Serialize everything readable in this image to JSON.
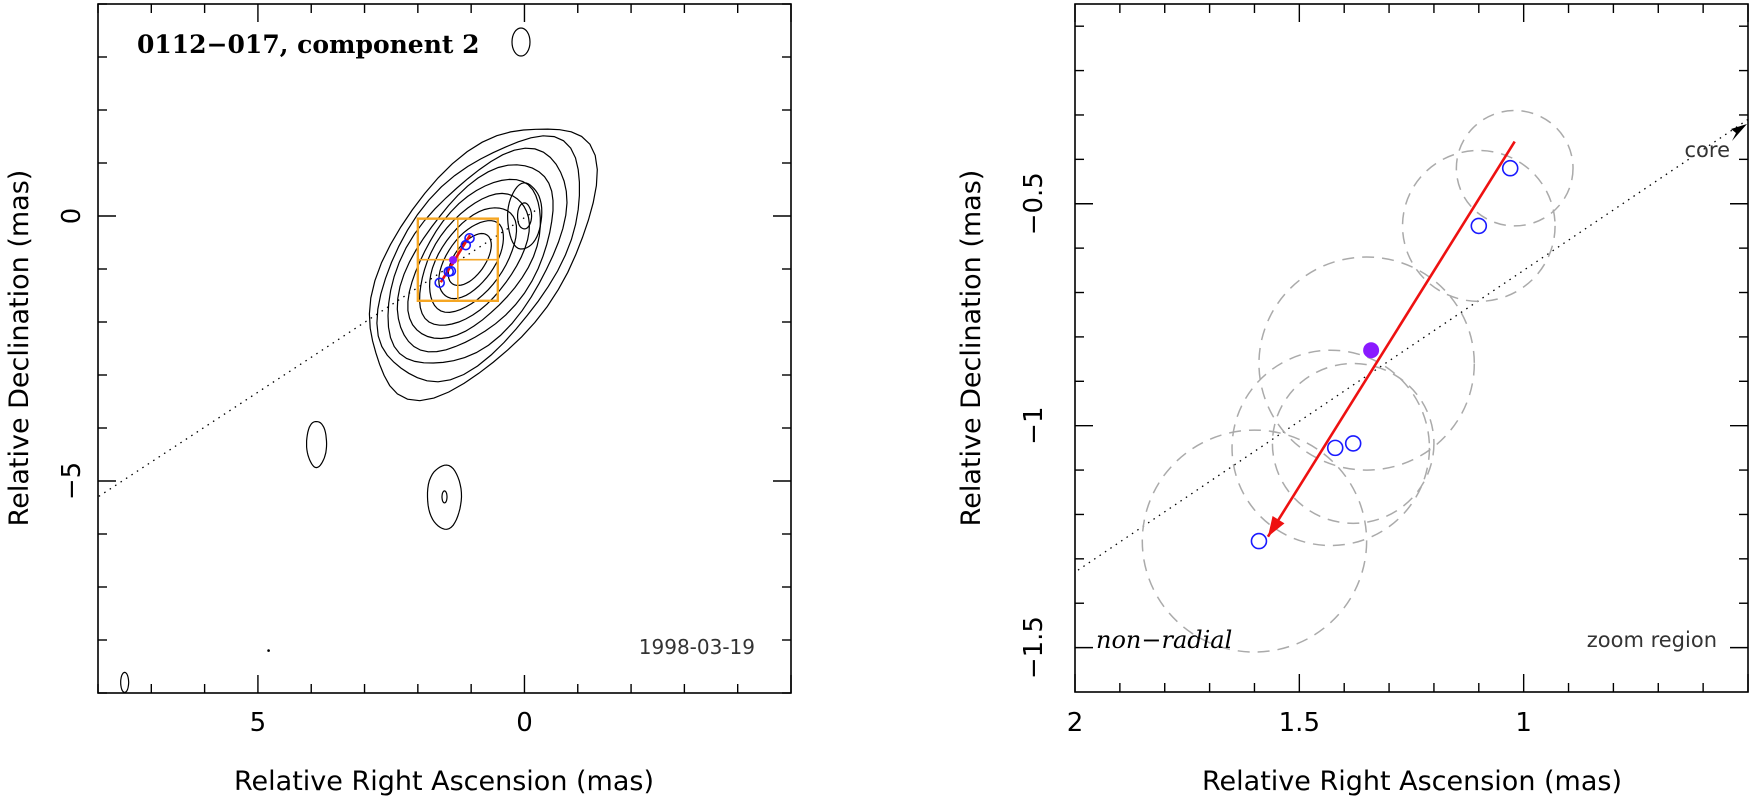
{
  "chart_data": [
    {
      "type": "scatter",
      "panel": "left",
      "title": "0112−017, component 2",
      "xlabel": "Relative Right Ascension (mas)",
      "ylabel": "Relative Declination (mas)",
      "xlim": [
        8,
        -5
      ],
      "ylim": [
        -9,
        4
      ],
      "xticks": [
        {
          "value": 5,
          "label": "5"
        },
        {
          "value": 0,
          "label": "0"
        }
      ],
      "yticks": [
        {
          "value": 0,
          "label": "0"
        },
        {
          "value": -5,
          "label": "−5"
        }
      ],
      "date": "1998-03-19",
      "contour_peaks": [
        {
          "x": 0.0,
          "y": 0.0,
          "levels": 2
        },
        {
          "x": 1.2,
          "y": -0.9,
          "levels": 9
        },
        {
          "x": 3.9,
          "y": -4.3,
          "levels": 1
        },
        {
          "x": 1.5,
          "y": -5.3,
          "levels": 2
        }
      ],
      "zoom_region": {
        "x_range": [
          0.5,
          2.0
        ],
        "y_range": [
          -1.6,
          -0.05
        ]
      },
      "core_direction_line": {
        "from": [
          -0.2,
          0.1
        ],
        "to": [
          8.0,
          -5.3
        ]
      },
      "positions_open": [
        [
          1.03,
          -0.42
        ],
        [
          1.1,
          -0.55
        ],
        [
          1.38,
          -1.04
        ],
        [
          1.42,
          -1.05
        ],
        [
          1.59,
          -1.26
        ]
      ],
      "position_filled": [
        1.34,
        -0.83
      ],
      "velocity_vector": {
        "from": [
          1.02,
          -0.36
        ],
        "to": [
          1.57,
          -1.25
        ]
      }
    },
    {
      "type": "scatter",
      "panel": "right",
      "xlabel": "Relative Right Ascension (mas)",
      "ylabel": "Relative Declination (mas)",
      "xlim": [
        2.0,
        0.5
      ],
      "ylim": [
        -1.6,
        -0.05
      ],
      "xticks": [
        {
          "value": 2,
          "label": "2"
        },
        {
          "value": 1.5,
          "label": "1.5"
        },
        {
          "value": 1,
          "label": "1"
        }
      ],
      "yticks": [
        {
          "value": -0.5,
          "label": "−0.5"
        },
        {
          "value": -1,
          "label": "−1"
        },
        {
          "value": -1.5,
          "label": "−1.5"
        }
      ],
      "positions_open": [
        [
          1.03,
          -0.42
        ],
        [
          1.1,
          -0.55
        ],
        [
          1.38,
          -1.04
        ],
        [
          1.42,
          -1.05
        ],
        [
          1.59,
          -1.26
        ]
      ],
      "position_filled": [
        1.34,
        -0.83
      ],
      "error_circles": [
        {
          "x": 1.02,
          "y": -0.42,
          "r": 0.13
        },
        {
          "x": 1.1,
          "y": -0.55,
          "r": 0.17
        },
        {
          "x": 1.35,
          "y": -0.86,
          "r": 0.24
        },
        {
          "x": 1.38,
          "y": -1.04,
          "r": 0.18
        },
        {
          "x": 1.43,
          "y": -1.05,
          "r": 0.22
        },
        {
          "x": 1.6,
          "y": -1.26,
          "r": 0.25
        }
      ],
      "velocity_vector": {
        "from": [
          1.02,
          -0.36
        ],
        "to": [
          1.57,
          -1.25
        ]
      },
      "core_direction_line": {
        "from": [
          0.5,
          -0.31
        ],
        "to": [
          2.0,
          -1.33
        ]
      },
      "core_label": "core",
      "motion_label": "non−radial",
      "region_label": "zoom region"
    }
  ]
}
